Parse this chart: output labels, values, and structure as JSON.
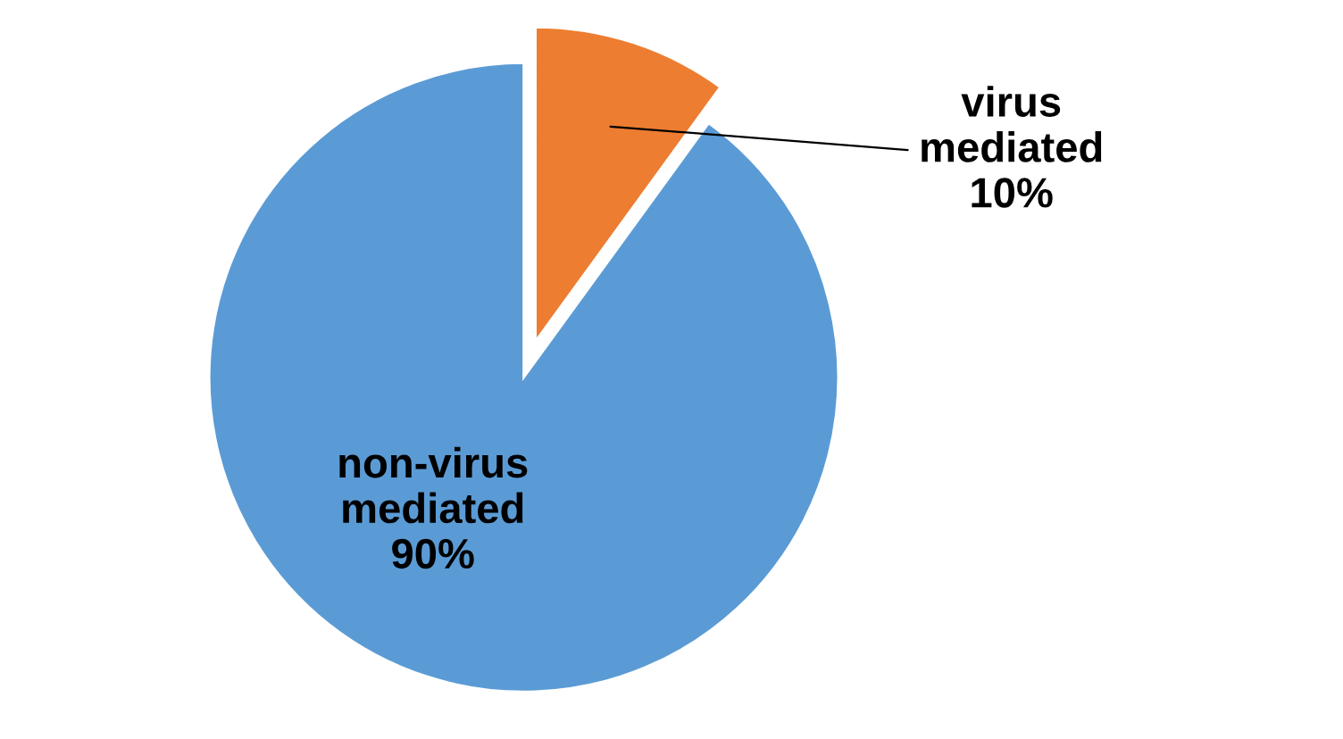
{
  "chart_data": {
    "type": "pie",
    "categories": [
      "virus mediated",
      "non-virus mediated"
    ],
    "values": [
      10,
      90
    ],
    "colors": [
      "#ed7d31",
      "#5b9bd5"
    ],
    "value_labels": [
      "10%",
      "90%"
    ]
  }
}
